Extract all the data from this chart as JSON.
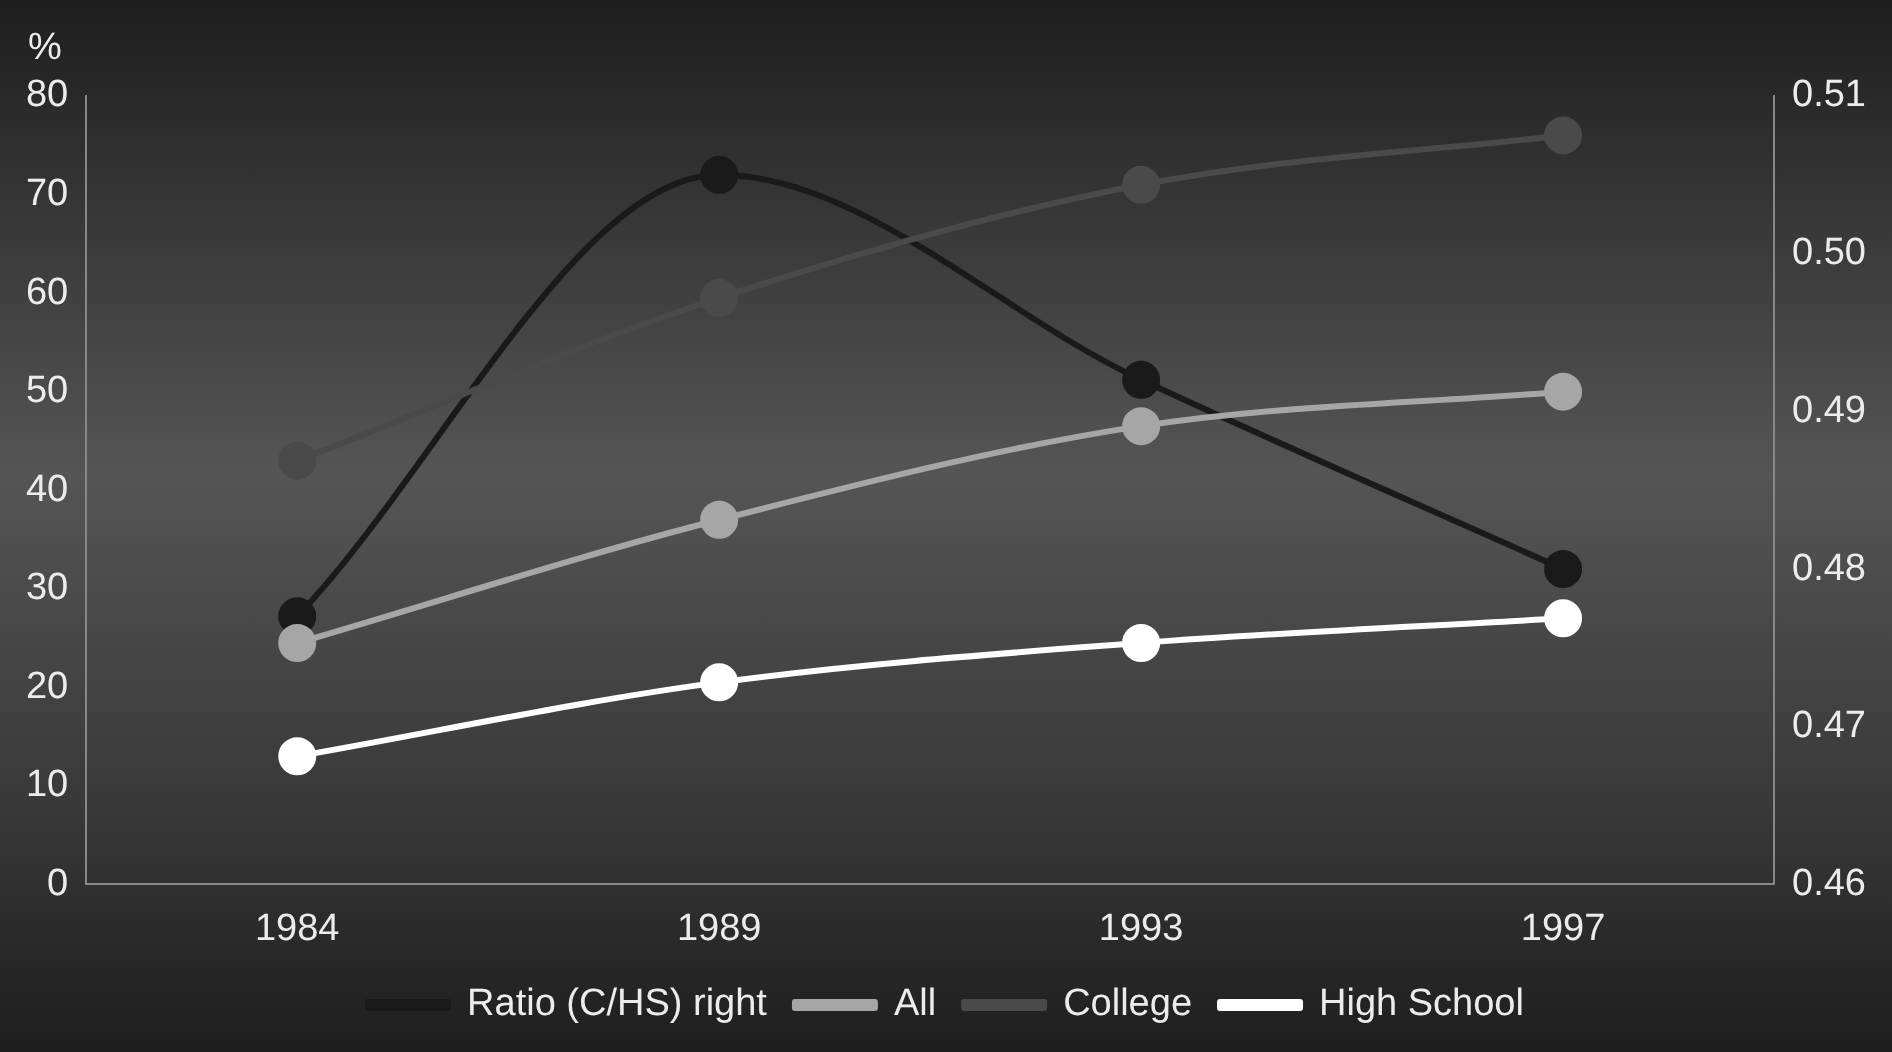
{
  "chart_data": {
    "type": "line",
    "ylabel": "%",
    "categories": [
      "1984",
      "1989",
      "1993",
      "1997"
    ],
    "ylim": [
      0,
      80
    ],
    "yticks": [
      0,
      10,
      20,
      30,
      40,
      50,
      60,
      70,
      80
    ],
    "y2lim": [
      0.46,
      0.51
    ],
    "y2ticks": [
      {
        "value": 0.46,
        "label": "0.46"
      },
      {
        "value": 0.47,
        "label": "0.47"
      },
      {
        "value": 0.48,
        "label": "0.48"
      },
      {
        "value": 0.49,
        "label": "0.49"
      },
      {
        "value": 0.5,
        "label": "0.50"
      },
      {
        "value": 0.51,
        "label": "0.51"
      }
    ],
    "series": [
      {
        "name": "Ratio (C/HS) right",
        "color": "#1a1a1a",
        "axis": "y2",
        "values": [
          0.477,
          0.505,
          0.492,
          0.48
        ]
      },
      {
        "name": "All",
        "color": "#a6a6a6",
        "values": [
          24.5,
          37,
          46.5,
          50
        ]
      },
      {
        "name": "College",
        "color": "#4a4a4a",
        "values": [
          43,
          59.5,
          71,
          76
        ]
      },
      {
        "name": "High School",
        "color": "#ffffff",
        "values": [
          13,
          20.5,
          24.5,
          27
        ]
      }
    ],
    "grid": false,
    "legend": "bottom",
    "marker": "circle",
    "line_style": "solid"
  }
}
